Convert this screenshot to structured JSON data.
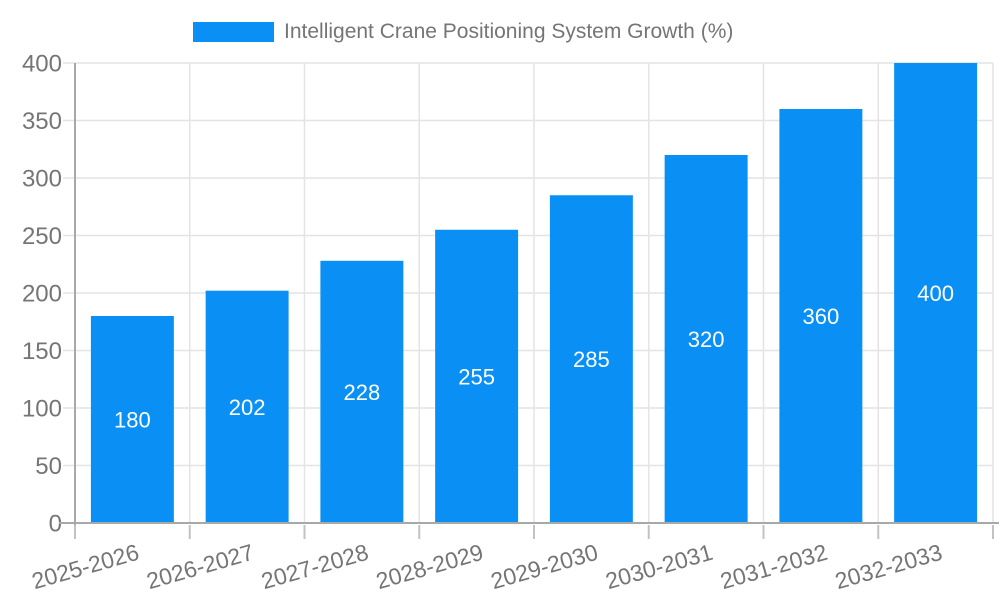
{
  "legend": {
    "label": "Intelligent Crane Positioning System Growth (%)"
  },
  "chart_data": {
    "type": "bar",
    "title": "Intelligent Crane Positioning System Growth (%)",
    "series_name": "Intelligent Crane Positioning System Growth (%)",
    "categories": [
      "2025-2026",
      "2026-2027",
      "2027-2028",
      "2028-2029",
      "2029-2030",
      "2030-2031",
      "2031-2032",
      "2032-2033"
    ],
    "values": [
      180,
      202,
      228,
      255,
      285,
      320,
      360,
      400
    ],
    "value_labels_shown": true,
    "value_label_position": "inside-center",
    "xlabel": "",
    "ylabel": "",
    "ylim": [
      0,
      400
    ],
    "yticks": [
      0,
      50,
      100,
      150,
      200,
      250,
      300,
      350,
      400
    ],
    "grid": true,
    "legend_position": "top",
    "colors": {
      "bar": "#0a90f4",
      "value_label": "#ffffff",
      "axis_line": "#a8a8a8",
      "grid_line": "#e4e4e4",
      "tick": "#c2c2c2",
      "axis_label": "#757575",
      "background": "#ffffff"
    }
  }
}
